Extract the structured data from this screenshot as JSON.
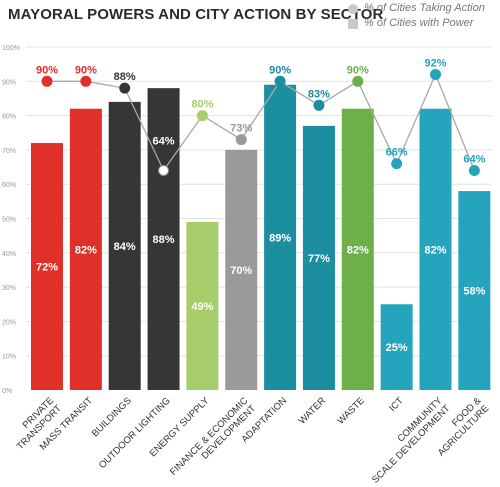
{
  "chart_data": {
    "type": "bar",
    "title": "MAYORAL POWERS AND CITY ACTION BY SECTOR",
    "categories": [
      "PRIVATE TRANSPORT",
      "MASS TRANSIT",
      "BUILDINGS",
      "OUTDOOR LIGHTING",
      "ENERGY SUPPLY",
      "FINANCE & ECONOMIC DEVELOPMENT",
      "ADAPTATION",
      "WATER",
      "WASTE",
      "ICT",
      "COMMUNITY SCALE DEVELOPMENT",
      "FOOD & AGRICULTURE"
    ],
    "category_lines": [
      [
        "PRIVATE",
        "TRANSPORT"
      ],
      [
        "MASS TRANSIT"
      ],
      [
        "BUILDINGS"
      ],
      [
        "OUTDOOR LIGHTING"
      ],
      [
        "ENERGY SUPPLY"
      ],
      [
        "FINANCE & ECONOMIC",
        "DEVELOPMENT"
      ],
      [
        "ADAPTATION"
      ],
      [
        "WATER"
      ],
      [
        "WASTE"
      ],
      [
        "ICT"
      ],
      [
        "COMMUNITY",
        "SCALE DEVELOPMENT"
      ],
      [
        "FOOD &",
        "AGRICULTURE"
      ]
    ],
    "series": [
      {
        "name": "% of Cities with Power",
        "kind": "bar",
        "values": [
          72,
          82,
          84,
          88,
          49,
          70,
          89,
          77,
          82,
          25,
          82,
          58
        ],
        "labels": [
          "72%",
          "82%",
          "84%",
          "88%",
          "49%",
          "70%",
          "89%",
          "77%",
          "82%",
          "25%",
          "82%",
          "58%"
        ]
      },
      {
        "name": "% of Cities Taking Action",
        "kind": "line",
        "values": [
          90,
          90,
          88,
          64,
          80,
          73,
          90,
          83,
          90,
          66,
          92,
          64
        ],
        "labels": [
          "90%",
          "90%",
          "88%",
          "64%",
          "80%",
          "73%",
          "90%",
          "83%",
          "90%",
          "66%",
          "92%",
          "64%"
        ]
      }
    ],
    "ylim": [
      0,
      100
    ],
    "y_ticks": [
      "0%",
      "10%",
      "20%",
      "30%",
      "40%",
      "50%",
      "60%",
      "70%",
      "80%",
      "90%",
      "100%"
    ],
    "grid": true,
    "legend_position": "top-right",
    "sector_colors": [
      "#e0302a",
      "#e0302a",
      "#363636",
      "#363636",
      "#a6cd69",
      "#9a9a9a",
      "#1b8ea0",
      "#1b8ea0",
      "#6db04a",
      "#25a4be",
      "#25a4be",
      "#25a4be"
    ],
    "marker_colors": [
      "#e0302a",
      "#e0302a",
      "#363636",
      "#ffffff",
      "#a6cd69",
      "#9a9a9a",
      "#1b8ea0",
      "#1b8ea0",
      "#6db04a",
      "#25a4be",
      "#25a4be",
      "#25a4be"
    ],
    "action_label_colors": [
      "#e0302a",
      "#e0302a",
      "#363636",
      "#ffffff",
      "#a6cd69",
      "#9a9a9a",
      "#1b8ea0",
      "#1b8ea0",
      "#6db04a",
      "#25a4be",
      "#25a4be",
      "#25a4be"
    ],
    "line_color": "#a8a8a8",
    "grid_color": "#e3e3e3",
    "axis_text_color": "#999999",
    "category_text_color": "#333333",
    "bar_label_color": "#ffffff"
  }
}
